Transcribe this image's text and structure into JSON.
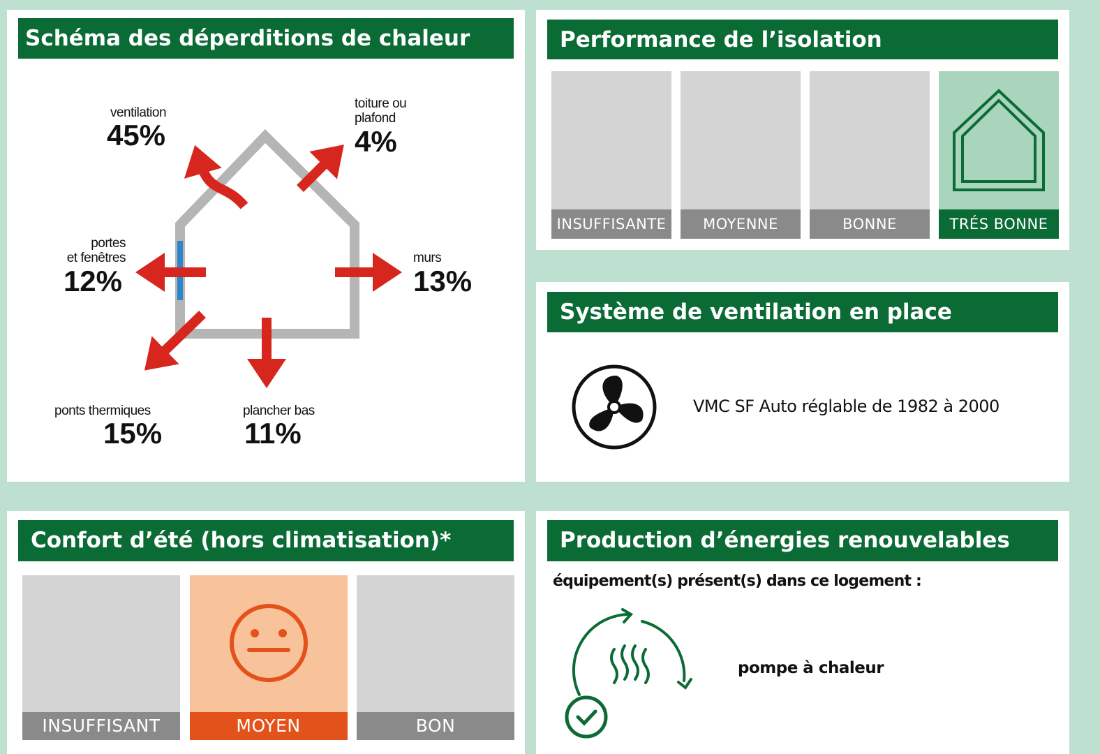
{
  "heat_loss": {
    "title": "Schéma des déperditions de chaleur",
    "items": [
      {
        "label": [
          "ventilation"
        ],
        "value": "45%"
      },
      {
        "label": [
          "toiture ou",
          "plafond"
        ],
        "value": "4%"
      },
      {
        "label": [
          "portes",
          "et fenêtres"
        ],
        "value": "12%"
      },
      {
        "label": [
          "murs"
        ],
        "value": "13%"
      },
      {
        "label": [
          "ponts thermiques"
        ],
        "value": "15%"
      },
      {
        "label": [
          "plancher bas"
        ],
        "value": "11%"
      }
    ]
  },
  "insulation": {
    "title": "Performance de l’isolation",
    "levels": [
      "INSUFFISANTE",
      "MOYENNE",
      "BONNE",
      "TRÉS BONNE"
    ],
    "selected": 3
  },
  "ventilation": {
    "title": "Système de ventilation en place",
    "system": "VMC SF Auto réglable de 1982 à 2000"
  },
  "summer_comfort": {
    "title": "Confort d’été (hors climatisation)*",
    "levels": [
      "INSUFFISANT",
      "MOYEN",
      "BON"
    ],
    "selected": 1
  },
  "renewables": {
    "title": "Production d’énergies renouvelables",
    "subtitle": "équipement(s) présent(s) dans ce logement :",
    "equipment": [
      "pompe à chaleur"
    ]
  }
}
